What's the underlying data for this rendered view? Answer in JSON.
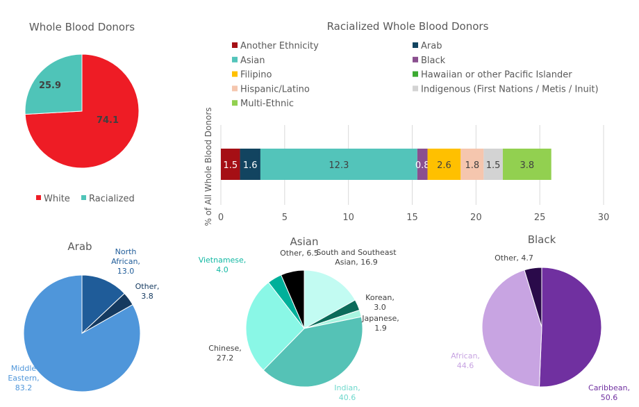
{
  "chart_data": [
    {
      "type": "pie",
      "title": "Whole Blood Donors",
      "categories": [
        "White",
        "Racialized"
      ],
      "values": [
        74.1,
        25.9
      ],
      "colors": [
        "#EE1C25",
        "#4FC4B8"
      ],
      "legend": "bottom",
      "data_labels": "inside"
    },
    {
      "type": "bar",
      "orientation": "horizontal-stacked",
      "title": "Racialized Whole Blood Donors",
      "ylabel": "% of All Whole Blood Donors",
      "xlabel": "",
      "xlim": [
        0,
        30
      ],
      "xticks": [
        0,
        5,
        10,
        15,
        20,
        25,
        30
      ],
      "grid": "vertical",
      "legend": "top",
      "series": [
        {
          "name": "Another Ethnicity",
          "value": 1.5,
          "color": "#A50F15",
          "label_color": "#ffffff"
        },
        {
          "name": "Arab",
          "value": 1.6,
          "color": "#124460",
          "label_color": "#ffffff"
        },
        {
          "name": "Asian",
          "value": 12.3,
          "color": "#53C4BA",
          "label_color": "#404040"
        },
        {
          "name": "Black",
          "value": 0.8,
          "color": "#8A4F8F",
          "label_color": "#ffffff"
        },
        {
          "name": "Filipino",
          "value": 2.6,
          "color": "#FFC000",
          "label_color": "#404040"
        },
        {
          "name": "Hawaiian or other Pacific Islander",
          "value": 0,
          "color": "#3CAA31",
          "label_color": "#404040"
        },
        {
          "name": "Hispanic/Latino",
          "value": 1.8,
          "color": "#F5C6AE",
          "label_color": "#404040"
        },
        {
          "name": "Indigenous (First Nations / Metis / Inuit)",
          "value": 1.5,
          "color": "#D3D3D3",
          "label_color": "#404040"
        },
        {
          "name": "Multi-Ethnic",
          "value": 3.8,
          "color": "#92D050",
          "label_color": "#404040"
        }
      ]
    },
    {
      "type": "pie",
      "title": "Arab",
      "categories": [
        "North African",
        "Other",
        "Middle Eastern"
      ],
      "values": [
        13.0,
        3.8,
        83.2
      ],
      "colors": [
        "#1F5C99",
        "#153A60",
        "#4F96DA"
      ],
      "label_colors": [
        "#1F5C99",
        "#153A60",
        "#4F96DA"
      ]
    },
    {
      "type": "pie",
      "title": "Asian",
      "categories": [
        "South and Southeast Asian",
        "Korean",
        "Japanese",
        "Indian",
        "Chinese",
        "Vietnamese",
        "Other"
      ],
      "values": [
        16.9,
        3.0,
        1.9,
        40.6,
        27.2,
        4.0,
        6.5
      ],
      "colors": [
        "#C2FBF2",
        "#0B6B5A",
        "#A8F5E0",
        "#55C2B6",
        "#8AF7E6",
        "#00B09A",
        "#000000"
      ],
      "label_colors": [
        "#404040",
        "#404040",
        "#404040",
        "#6ED8CC",
        "#404040",
        "#12B8A3",
        "#404040"
      ]
    },
    {
      "type": "pie",
      "title": "Black",
      "categories": [
        "Caribbean",
        "African",
        "Other"
      ],
      "values": [
        50.6,
        44.6,
        4.7
      ],
      "colors": [
        "#7030A0",
        "#C8A4E2",
        "#2A0A4A"
      ],
      "label_colors": [
        "#7030A0",
        "#C8A4E2",
        "#404040"
      ]
    }
  ]
}
